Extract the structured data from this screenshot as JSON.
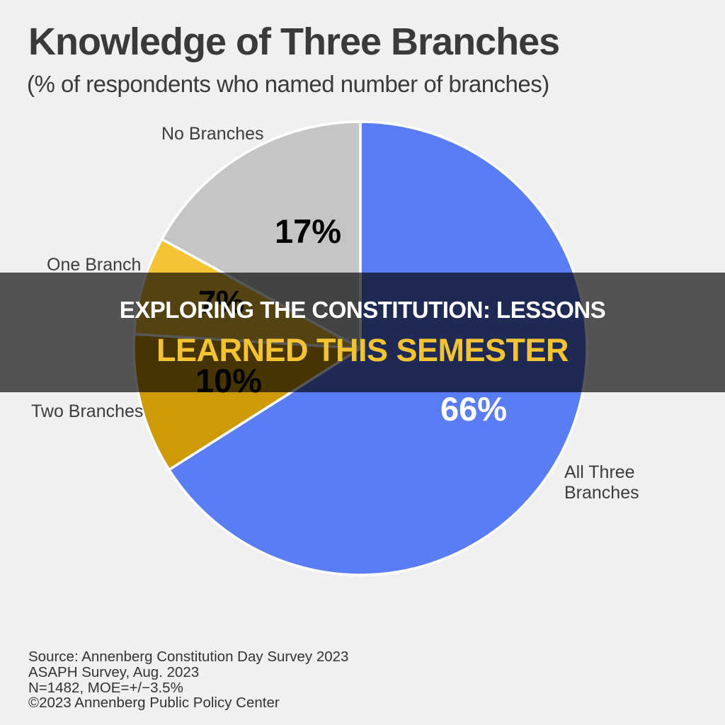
{
  "header": {
    "title": "Knowledge of Three Branches",
    "subtitle": "(% of respondents who named number of branches)"
  },
  "overlay_banner": {
    "line1": "EXPLORING THE CONSTITUTION: LESSONS",
    "line2": "LEARNED THIS SEMESTER",
    "line1_color": "#ffffff",
    "line2_color": "#f3c331",
    "background_color": "rgba(0,0,0,0.66)"
  },
  "chart_data": {
    "type": "pie",
    "title": "Knowledge of Three Branches",
    "subtitle": "(% of respondents who named number of branches)",
    "start_angle_deg": 0,
    "direction": "clockwise",
    "slice_border_color": "#ffffff",
    "slices": [
      {
        "name": "All Three Branches",
        "value": 66,
        "display": "66%",
        "color": "#5a7df3",
        "value_label_color": "#ffffff"
      },
      {
        "name": "Two Branches",
        "value": 10,
        "display": "10%",
        "color": "#ce9a08",
        "value_label_color": "#000000"
      },
      {
        "name": "One Branch",
        "value": 7,
        "display": "7%",
        "color": "#f5c436",
        "value_label_color": "#000000"
      },
      {
        "name": "No Branches",
        "value": 17,
        "display": "17%",
        "color": "#c5c5c7",
        "value_label_color": "#000000"
      }
    ]
  },
  "footer": {
    "source_lines": [
      "Source: Annenberg Constitution Day Survey 2023",
      "ASAPH Survey, Aug. 2023",
      "N=1482, MOE=+/−3.5%",
      "©2023 Annenberg Public Policy Center"
    ]
  }
}
